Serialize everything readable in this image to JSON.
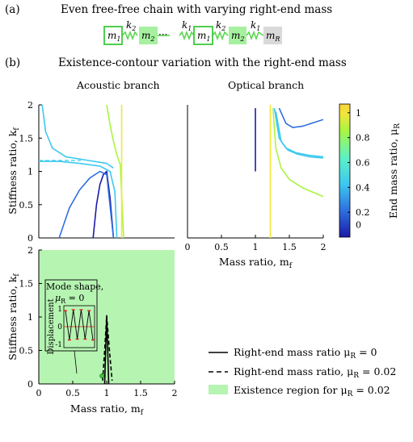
{
  "panel_a": {
    "tag": "(a)",
    "title": "Even free-free chain with varying  right-end mass",
    "labels": {
      "m1": "m",
      "m2": "m",
      "sub1": "1",
      "sub2": "2",
      "k1": "k",
      "k2": "k",
      "mR": "m",
      "subR": "R",
      "dots": "···"
    }
  },
  "panel_b": {
    "tag": "(b)",
    "title": "Existence-contour variation with the right-end mass",
    "acoustic_title": "Acoustic branch",
    "optical_title": "Optical branch"
  },
  "colorbar": {
    "label": "End mass ratio, μ",
    "label_sub": "R",
    "ticks": [
      "1",
      "0.8",
      "0.6",
      "0.4",
      "0.2",
      "0"
    ],
    "colors": [
      "#1b1ba8",
      "#2f6fe0",
      "#3cc9f0",
      "#5ef2c4",
      "#a8f540",
      "#f0e63a",
      "#fbd23a"
    ]
  },
  "legend": {
    "solid": "Right-end mass ratio μ",
    "solid_suffix": " = 0",
    "dashed": "Right-end mass ratio, μ",
    "dashed_suffix": " = 0.02",
    "region": "Existence region for μ",
    "region_suffix": " = 0.02",
    "sub": "R"
  },
  "inset": {
    "title": "Mode shape,",
    "subtitle": "μ",
    "subtitle_sub": "R",
    "subtitle_suffix": " = 0",
    "ylabel": "Displacement",
    "yticks": [
      "1",
      "0",
      "-1"
    ]
  },
  "chart_data": [
    {
      "type": "line",
      "name": "acoustic",
      "ylabel": "Stiffness ratio, k",
      "ylabel_sub": "f",
      "ylim": [
        0,
        2
      ],
      "yticks": [
        "2",
        "1.5",
        "1",
        "0.5",
        "0"
      ],
      "xlim": [
        0,
        2
      ],
      "series": [
        {
          "color": "#1b1ba8",
          "x": [
            0.8,
            0.85,
            0.9,
            0.95,
            1.0,
            1.05,
            1.1
          ],
          "y": [
            0,
            0.5,
            0.8,
            0.95,
            1.0,
            0.6,
            0
          ]
        },
        {
          "color": "#2f6fe0",
          "x": [
            0.3,
            0.45,
            0.6,
            0.75,
            0.9,
            1.0,
            1.1
          ],
          "y": [
            0,
            0.45,
            0.72,
            0.9,
            1.0,
            0.95,
            0
          ]
        },
        {
          "color": "#3cc9f0",
          "x": [
            0.0,
            0.3,
            0.6,
            0.9,
            1.05,
            1.12,
            1.15
          ],
          "y": [
            1.15,
            1.15,
            1.12,
            1.08,
            1.0,
            0.7,
            0
          ]
        },
        {
          "color": "#3cc9f0",
          "x": [
            0.05,
            0.1,
            0.2,
            0.4,
            0.7,
            1.0,
            1.1
          ],
          "y": [
            2.0,
            1.6,
            1.35,
            1.22,
            1.17,
            1.12,
            1.05
          ]
        },
        {
          "color": "#a8f540",
          "x": [
            1.0,
            1.05,
            1.1,
            1.15,
            1.2,
            1.25
          ],
          "y": [
            2.0,
            1.7,
            1.45,
            1.25,
            1.1,
            0.0
          ]
        },
        {
          "color": "#f0e63a",
          "x": [
            1.22,
            1.22
          ],
          "y": [
            0,
            2.0
          ]
        }
      ]
    },
    {
      "type": "line",
      "name": "optical",
      "xlabel": "Mass ratio, m",
      "xlabel_sub": "f",
      "xlim": [
        0,
        2
      ],
      "xticks": [
        "0",
        "0.5",
        "1",
        "1.5",
        "2"
      ],
      "ylim": [
        0,
        2
      ],
      "series": [
        {
          "color": "#1b1ba8",
          "x": [
            1.0,
            1.0
          ],
          "y": [
            1.0,
            1.95
          ]
        },
        {
          "color": "#2f6fe0",
          "x": [
            1.35,
            1.45,
            1.55,
            1.7,
            1.85,
            2.0
          ],
          "y": [
            1.95,
            1.72,
            1.66,
            1.68,
            1.73,
            1.78
          ]
        },
        {
          "color": "#3cc9f0",
          "x": [
            1.28,
            1.35,
            1.45,
            1.6,
            1.8,
            2.0
          ],
          "y": [
            1.95,
            1.5,
            1.35,
            1.28,
            1.24,
            1.22
          ]
        },
        {
          "color": "#3cc9f0",
          "x": [
            1.3,
            1.38,
            1.48,
            1.62,
            1.8,
            2.0
          ],
          "y": [
            1.9,
            1.45,
            1.32,
            1.26,
            1.22,
            1.2
          ]
        },
        {
          "color": "#a8f540",
          "x": [
            1.26,
            1.3,
            1.38,
            1.5,
            1.7,
            2.0
          ],
          "y": [
            1.95,
            1.35,
            1.05,
            0.88,
            0.75,
            0.62
          ]
        },
        {
          "color": "#f0e63a",
          "x": [
            1.22,
            1.22
          ],
          "y": [
            0,
            2.0
          ]
        }
      ]
    },
    {
      "type": "area",
      "name": "existence",
      "ylabel": "Stiffness ratio, k",
      "ylabel_sub": "f",
      "xlabel": "Mass ratio, m",
      "xlabel_sub": "f",
      "xlim": [
        0,
        2
      ],
      "ylim": [
        0,
        2
      ],
      "xticks": [
        "0",
        "0.5",
        "1",
        "1.5",
        "2"
      ],
      "yticks": [
        "2",
        "1.5",
        "1",
        "0.5",
        "0"
      ],
      "region_color": "#b6f4b2",
      "series": [
        {
          "style": "solid",
          "x": [
            0.97,
            0.985,
            1.0,
            1.015,
            1.03
          ],
          "y": [
            0,
            0.5,
            1.0,
            0.5,
            0
          ]
        },
        {
          "style": "dashed",
          "x": [
            0.94,
            0.97,
            1.0,
            1.04,
            1.08
          ],
          "y": [
            0.05,
            0.5,
            1.02,
            0.5,
            0.05
          ]
        }
      ],
      "marker": {
        "x": 0.93,
        "y": 0.12
      }
    }
  ],
  "inset_data": {
    "x": [
      1,
      2,
      3,
      4,
      5,
      6,
      7,
      8
    ],
    "y": [
      0.9,
      -0.75,
      0.95,
      -0.7,
      0.95,
      -0.7,
      0.9,
      -0.75
    ]
  }
}
